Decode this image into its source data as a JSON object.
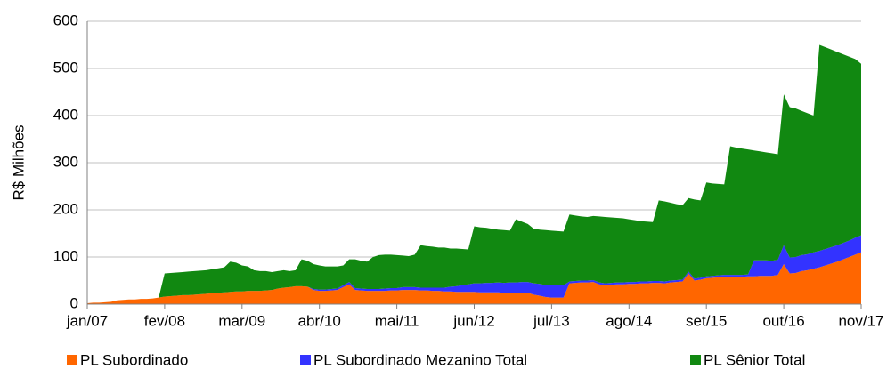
{
  "chart_data": {
    "type": "stacked-area",
    "y_label": "R$ Milhões",
    "categories": [
      "jan/07",
      null,
      null,
      null,
      null,
      null,
      null,
      null,
      null,
      null,
      null,
      null,
      null,
      "fev/08",
      null,
      null,
      null,
      null,
      null,
      null,
      null,
      null,
      null,
      null,
      null,
      null,
      "mar/09",
      null,
      null,
      null,
      null,
      null,
      null,
      null,
      null,
      null,
      null,
      null,
      null,
      "abr/10",
      null,
      null,
      null,
      null,
      null,
      null,
      null,
      null,
      null,
      null,
      null,
      null,
      "mai/11",
      null,
      null,
      null,
      null,
      null,
      null,
      null,
      null,
      null,
      null,
      null,
      null,
      "jun/12",
      null,
      null,
      null,
      null,
      null,
      null,
      null,
      null,
      null,
      null,
      null,
      null,
      "jul/13",
      null,
      null,
      null,
      null,
      null,
      null,
      null,
      null,
      null,
      null,
      null,
      null,
      "ago/14",
      null,
      null,
      null,
      null,
      null,
      null,
      null,
      null,
      null,
      null,
      null,
      null,
      "set/15",
      null,
      null,
      null,
      null,
      null,
      null,
      null,
      null,
      null,
      null,
      null,
      null,
      "out/16",
      null,
      null,
      null,
      null,
      null,
      null,
      null,
      null,
      null,
      null,
      null,
      null,
      "nov/17"
    ],
    "series": [
      {
        "name": "PL Subordinado",
        "color": "#ff6600",
        "values": [
          2,
          3,
          3,
          4,
          5,
          8,
          9,
          10,
          10,
          11,
          11,
          12,
          14,
          16,
          17,
          18,
          19,
          19,
          20,
          21,
          22,
          23,
          24,
          25,
          26,
          27,
          27,
          28,
          28,
          28,
          29,
          30,
          33,
          35,
          36,
          38,
          38,
          37,
          30,
          28,
          28,
          29,
          30,
          36,
          42,
          30,
          29,
          28,
          28,
          28,
          28,
          29,
          29,
          30,
          30,
          30,
          29,
          29,
          28,
          28,
          27,
          27,
          26,
          26,
          26,
          26,
          25,
          25,
          25,
          25,
          24,
          24,
          24,
          24,
          24,
          20,
          18,
          15,
          14,
          14,
          14,
          44,
          45,
          46,
          46,
          47,
          42,
          40,
          41,
          42,
          42,
          43,
          43,
          44,
          44,
          45,
          45,
          44,
          46,
          47,
          48,
          65,
          50,
          52,
          55,
          56,
          57,
          58,
          58,
          58,
          58,
          59,
          59,
          60,
          60,
          60,
          62,
          85,
          65,
          66,
          70,
          72,
          75,
          78,
          82,
          86,
          90,
          95,
          100,
          105,
          110
        ]
      },
      {
        "name": "PL Subordinado Mezanino Total",
        "color": "#3333ff",
        "values": [
          0,
          0,
          0,
          0,
          0,
          0,
          0,
          0,
          0,
          0,
          0,
          0,
          0,
          0,
          0,
          0,
          0,
          0,
          0,
          0,
          0,
          0,
          0,
          0,
          0,
          0,
          0,
          0,
          0,
          0,
          0,
          0,
          0,
          0,
          0,
          0,
          0,
          0,
          2,
          3,
          3,
          3,
          3,
          4,
          5,
          4,
          4,
          4,
          4,
          4,
          5,
          5,
          5,
          6,
          6,
          6,
          6,
          6,
          7,
          7,
          8,
          10,
          12,
          14,
          16,
          18,
          19,
          20,
          20,
          21,
          21,
          22,
          22,
          23,
          23,
          24,
          25,
          25,
          26,
          26,
          26,
          4,
          4,
          4,
          4,
          4,
          4,
          4,
          4,
          4,
          4,
          4,
          4,
          4,
          4,
          4,
          4,
          4,
          4,
          4,
          4,
          4,
          4,
          4,
          4,
          4,
          4,
          4,
          4,
          4,
          4,
          4,
          34,
          33,
          33,
          32,
          32,
          40,
          34,
          34,
          34,
          34,
          35,
          35,
          35,
          35,
          35,
          35,
          35,
          36,
          36
        ]
      },
      {
        "name": "PL Sênior Total",
        "color": "#118811",
        "values": [
          0,
          0,
          0,
          0,
          0,
          0,
          0,
          0,
          0,
          0,
          0,
          0,
          0,
          49,
          49,
          49,
          49,
          50,
          50,
          50,
          50,
          51,
          52,
          53,
          64,
          61,
          55,
          52,
          44,
          42,
          41,
          38,
          37,
          37,
          34,
          34,
          57,
          55,
          53,
          51,
          49,
          48,
          47,
          42,
          48,
          61,
          59,
          58,
          68,
          72,
          72,
          71,
          70,
          67,
          66,
          69,
          90,
          88,
          87,
          85,
          85,
          81,
          80,
          77,
          74,
          121,
          119,
          117,
          115,
          112,
          112,
          110,
          134,
          128,
          123,
          116,
          115,
          117,
          116,
          115,
          114,
          142,
          139,
          136,
          135,
          136,
          140,
          141,
          139,
          137,
          136,
          133,
          131,
          128,
          127,
          125,
          171,
          170,
          165,
          161,
          158,
          156,
          168,
          164,
          199,
          196,
          194,
          192,
          273,
          270,
          268,
          265,
          233,
          231,
          229,
          228,
          224,
          320,
          319,
          315,
          306,
          299,
          290,
          437,
          428,
          419,
          410,
          400,
          390,
          379,
          364
        ]
      }
    ],
    "ylim": [
      0,
      600
    ],
    "yticks": [
      0,
      100,
      200,
      300,
      400,
      500,
      600
    ],
    "grid": true,
    "legend": "bottom"
  }
}
